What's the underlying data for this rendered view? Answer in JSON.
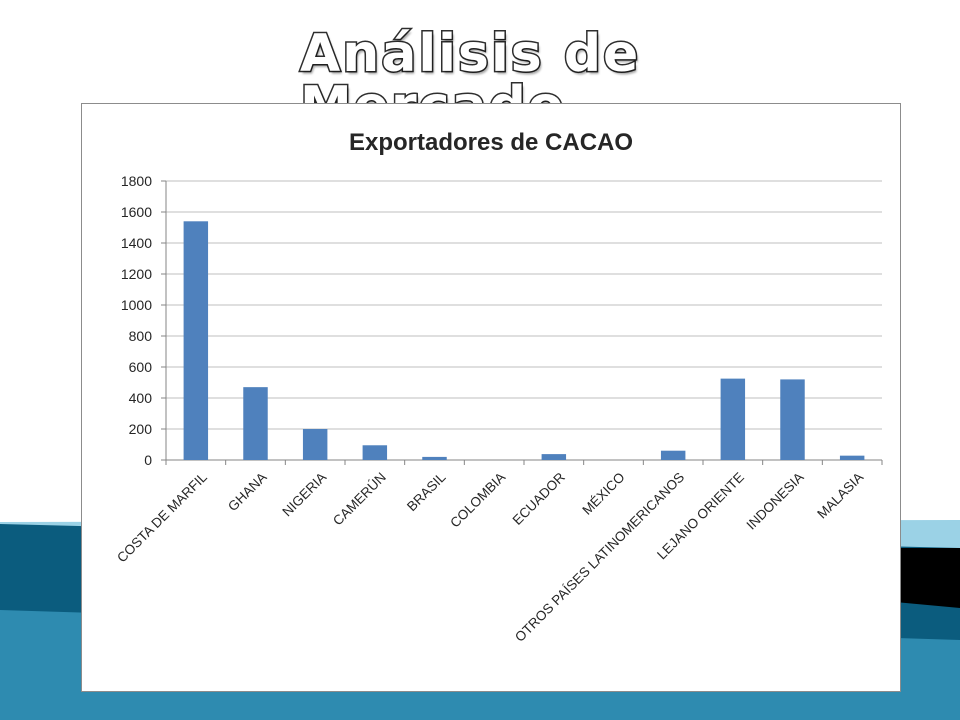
{
  "slide": {
    "title": "Análisis de Mercado."
  },
  "colors": {
    "bar": "#4F81BD",
    "grid": "#BFBFBF",
    "axis": "#868686",
    "band_dark": "#0B5C7E",
    "band_mid": "#2E8BB0",
    "band_light": "#9BD2E6"
  },
  "chart_data": {
    "type": "bar",
    "title": "Exportadores de CACAO",
    "xlabel": "",
    "ylabel": "",
    "ylim": [
      0,
      1800
    ],
    "yticks": [
      0,
      200,
      400,
      600,
      800,
      1000,
      1200,
      1400,
      1600,
      1800
    ],
    "grid": true,
    "legend": "none",
    "categories": [
      "COSTA DE MARFIL",
      "GHANA",
      "NIGERIA",
      "CAMERÚN",
      "BRASIL",
      "COLOMBIA",
      "ECUADOR",
      "MÉXICO",
      "OTROS PAÍSES LATINOMERICANOS",
      "LEJANO ORIENTE",
      "INDONESIA",
      "MALASIA"
    ],
    "values": [
      1540,
      470,
      200,
      95,
      20,
      0,
      38,
      0,
      60,
      525,
      520,
      28
    ]
  }
}
